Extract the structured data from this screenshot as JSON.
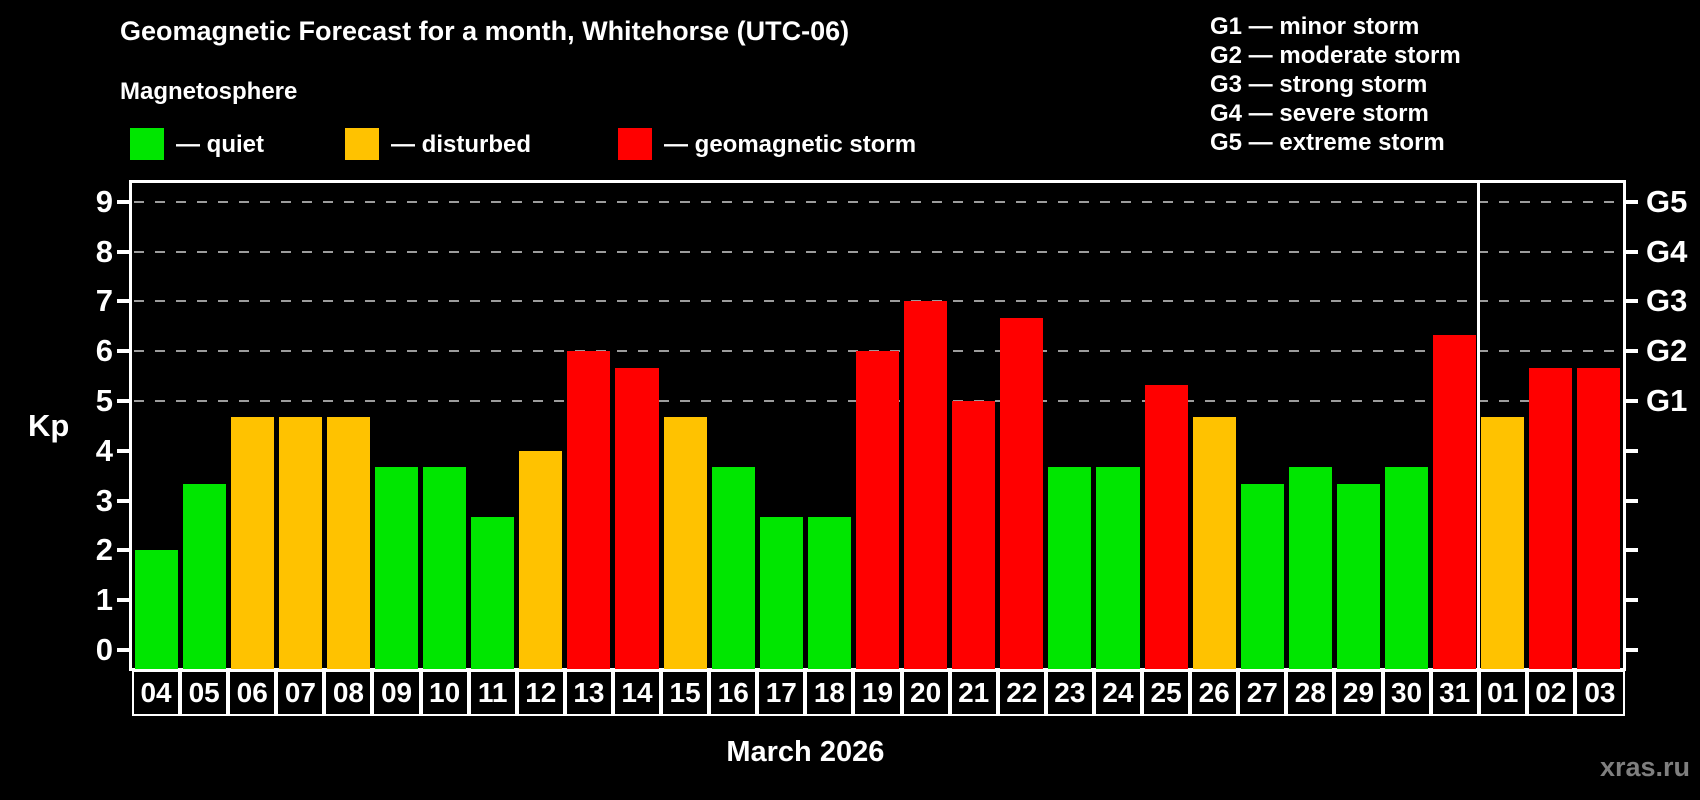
{
  "header": {
    "title": "Geomagnetic Forecast for a month, Whitehorse (UTC-06)",
    "subtitle": "Magnetosphere",
    "legend": [
      {
        "key": "quiet",
        "label": "— quiet"
      },
      {
        "key": "disturbed",
        "label": "— disturbed"
      },
      {
        "key": "storm",
        "label": "— geomagnetic storm"
      }
    ],
    "g_scale_legend": [
      "G1 — minor storm",
      "G2 — moderate storm",
      "G3 — strong storm",
      "G4 — severe storm",
      "G5 — extreme storm"
    ]
  },
  "chart_data": {
    "type": "bar",
    "title": "Geomagnetic Forecast for a month, Whitehorse (UTC-06)",
    "ylabel": "Kp",
    "xlabel": "March 2026",
    "ylim": [
      0,
      9
    ],
    "yticks": [
      0,
      1,
      2,
      3,
      4,
      5,
      6,
      7,
      8,
      9
    ],
    "gridlines_at": [
      5,
      6,
      7,
      8,
      9
    ],
    "grid": "dashed",
    "right_axis_labels": [
      {
        "label": "G1",
        "kp": 5
      },
      {
        "label": "G2",
        "kp": 6
      },
      {
        "label": "G3",
        "kp": 7
      },
      {
        "label": "G4",
        "kp": 8
      },
      {
        "label": "G5",
        "kp": 9
      }
    ],
    "categories": [
      "04",
      "05",
      "06",
      "07",
      "08",
      "09",
      "10",
      "11",
      "12",
      "13",
      "14",
      "15",
      "16",
      "17",
      "18",
      "19",
      "20",
      "21",
      "22",
      "23",
      "24",
      "25",
      "26",
      "27",
      "28",
      "29",
      "30",
      "31",
      "01",
      "02",
      "03"
    ],
    "values": [
      2.0,
      3.33,
      4.67,
      4.67,
      4.67,
      3.67,
      3.67,
      2.67,
      4.0,
      6.0,
      5.67,
      4.67,
      3.67,
      2.67,
      2.67,
      6.0,
      7.0,
      5.0,
      6.67,
      3.67,
      3.67,
      5.33,
      4.67,
      3.33,
      3.67,
      3.33,
      3.67,
      6.33,
      4.67,
      5.67,
      5.67
    ],
    "statuses": [
      "quiet",
      "quiet",
      "disturbed",
      "disturbed",
      "disturbed",
      "quiet",
      "quiet",
      "quiet",
      "disturbed",
      "storm",
      "storm",
      "disturbed",
      "quiet",
      "quiet",
      "quiet",
      "storm",
      "storm",
      "storm",
      "storm",
      "quiet",
      "quiet",
      "storm",
      "disturbed",
      "quiet",
      "quiet",
      "quiet",
      "quiet",
      "storm",
      "disturbed",
      "storm",
      "storm"
    ],
    "month_boundary_after_index": 27,
    "colors": {
      "quiet": "#00e600",
      "disturbed": "#ffc200",
      "storm": "#ff0000",
      "grid": "#9c9c9c",
      "axis": "#ffffff",
      "watermark": "#7f7f7f"
    }
  },
  "footer": {
    "month_label": "March 2026",
    "watermark": "xras.ru"
  }
}
